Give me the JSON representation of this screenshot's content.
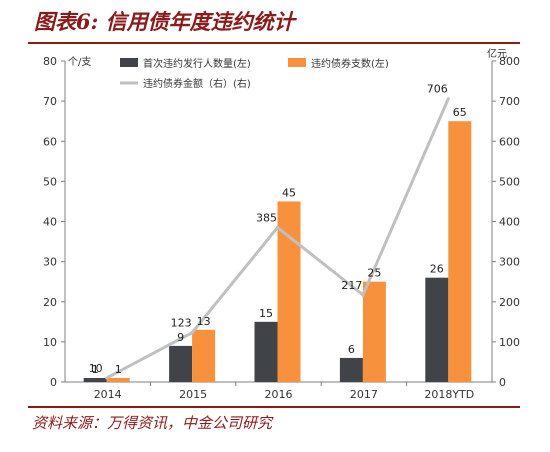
{
  "header": {
    "title": "图表6: 信用债年度违约统计"
  },
  "footer": {
    "source": "资料来源：万得资讯，中金公司研究"
  },
  "chart_data": {
    "type": "bar",
    "title": "图表6: 信用债年度违约统计",
    "categories": [
      "2014",
      "2015",
      "2016",
      "2017",
      "2018YTD"
    ],
    "series": [
      {
        "name": "首次违约发行人数量(左)",
        "type": "bar",
        "axis": "left",
        "color": "#404449",
        "values": [
          1,
          9,
          15,
          6,
          26
        ],
        "labels": [
          "1",
          "9",
          "15",
          "6",
          "26"
        ]
      },
      {
        "name": "违约债券支数(左)",
        "type": "bar",
        "axis": "left",
        "color": "#f7913d",
        "values": [
          1,
          13,
          45,
          25,
          65
        ],
        "labels": [
          "1",
          "13",
          "45",
          "25",
          "65"
        ]
      },
      {
        "name": "违约债券金额（右）(右)",
        "type": "line",
        "axis": "right",
        "color": "#c0c0c0",
        "values": [
          10,
          123,
          385,
          217,
          706
        ],
        "labels": [
          "10",
          "123",
          "385",
          "217",
          "706"
        ]
      }
    ],
    "y_left": {
      "unit": "个/支",
      "ylim": [
        0,
        80
      ],
      "ticks": [
        "0",
        "10",
        "20",
        "30",
        "40",
        "50",
        "60",
        "70",
        "80"
      ]
    },
    "y_right": {
      "unit": "亿元",
      "ylim": [
        0,
        800
      ],
      "ticks": [
        "0",
        "100",
        "200",
        "300",
        "400",
        "500",
        "600",
        "700",
        "800"
      ]
    },
    "grid": false,
    "legend_position": "top"
  }
}
